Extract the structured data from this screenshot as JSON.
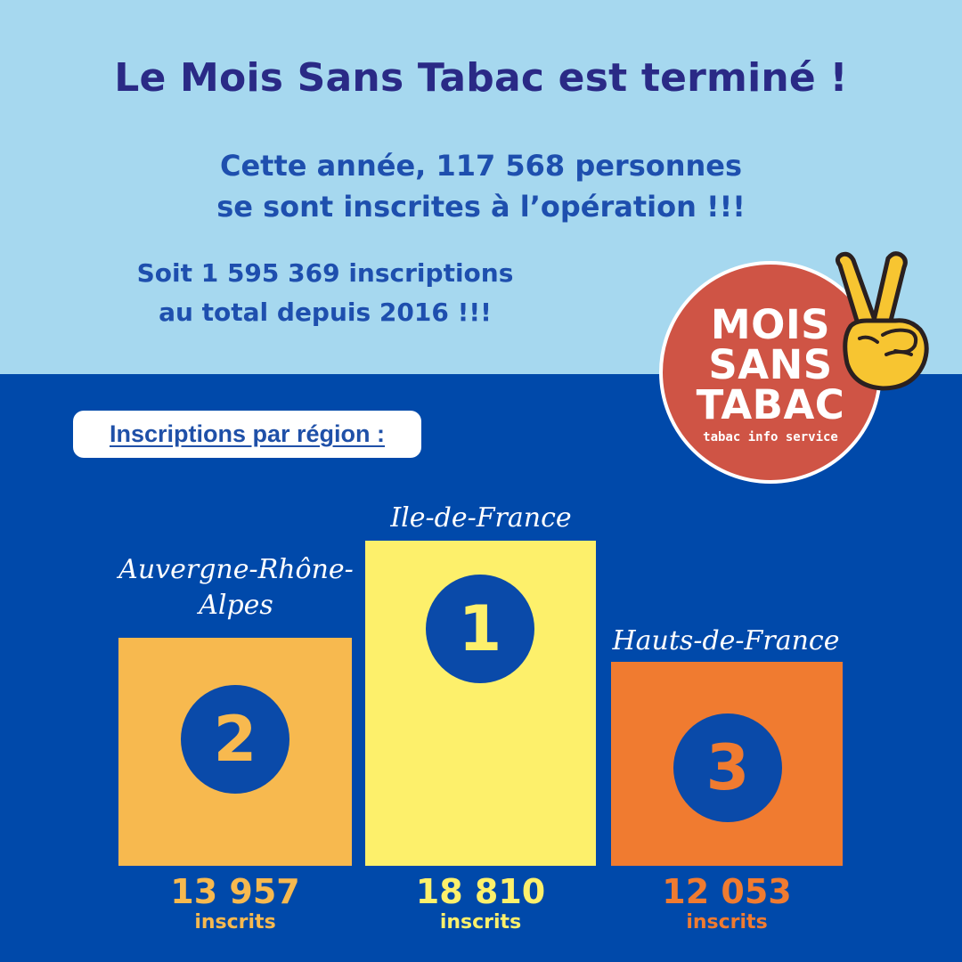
{
  "header": {
    "title": "Le Mois Sans Tabac est terminé !",
    "subtitle_line1": "Cette année, 117 568 personnes",
    "subtitle_line2": "se sont inscrites à l’opération !!!",
    "total_line1": "Soit 1 595 369 inscriptions",
    "total_line2": "au total depuis 2016 !!!"
  },
  "logo": {
    "line1": "MOIS",
    "line2": "SANS",
    "line3": "TABAC",
    "tagline": "tabac info service",
    "icon": "victory-hand-icon"
  },
  "section_label": "Inscriptions par région :",
  "podium": [
    {
      "rank": "2",
      "region_line1": "Auvergne-Rhône-",
      "region_line2": "Alpes",
      "count": "13 957",
      "unit": "inscrits",
      "color": "#f7b94f"
    },
    {
      "rank": "1",
      "region_line1": "Ile-de-France",
      "region_line2": "",
      "count": "18 810",
      "unit": "inscrits",
      "color": "#fdf06b"
    },
    {
      "rank": "3",
      "region_line1": "Hauts-de-France",
      "region_line2": "",
      "count": "12 053",
      "unit": "inscrits",
      "color": "#f07b30"
    }
  ],
  "colors": {
    "top_bg": "#a6d8ef",
    "bottom_bg": "#0049aa",
    "title": "#2a2a86",
    "logo_red": "#cf5445"
  }
}
